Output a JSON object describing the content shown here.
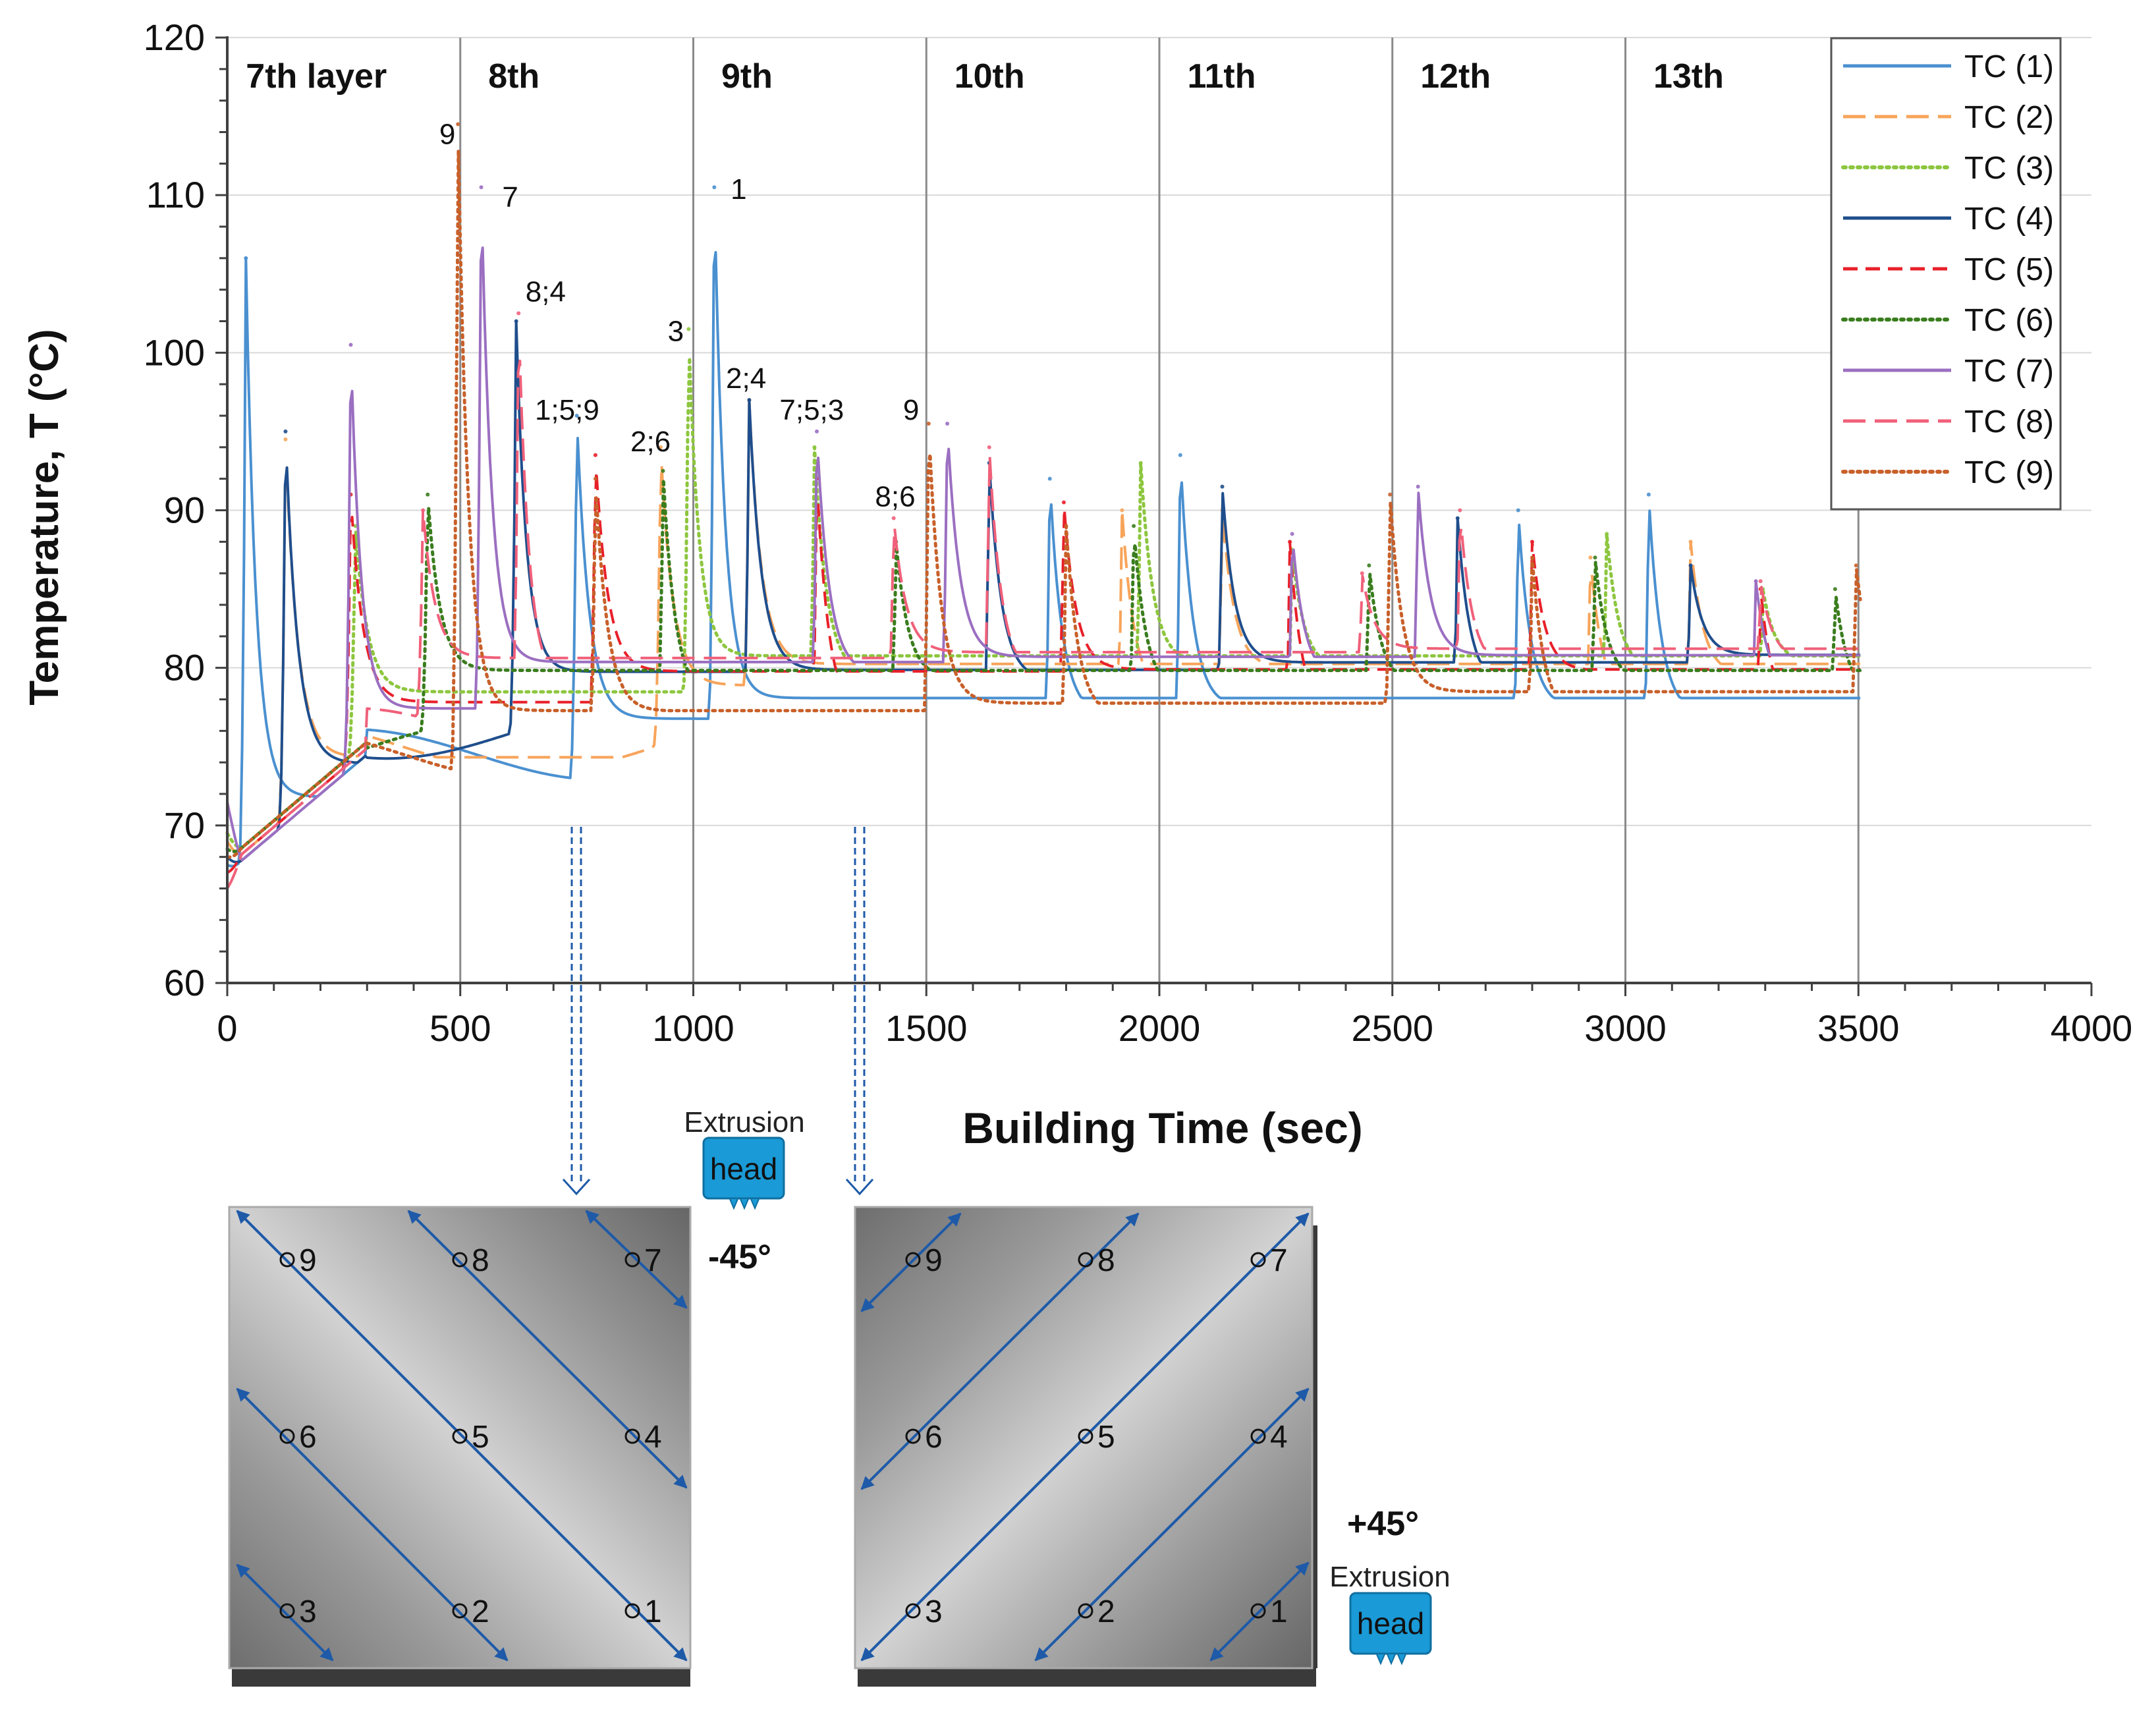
{
  "chart_data": {
    "type": "line",
    "xlabel": "Building Time (sec)",
    "ylabel": "Temperature, T (°C)",
    "xlim": [
      0,
      4000
    ],
    "ylim": [
      60,
      120
    ],
    "x_ticks": [
      "0",
      "500",
      "1000",
      "1500",
      "2000",
      "2500",
      "3000",
      "3500",
      "4000"
    ],
    "y_ticks": [
      "60",
      "70",
      "80",
      "90",
      "100",
      "110",
      "120"
    ],
    "grid": true,
    "legend_position": "top-right",
    "layer_boundaries": [
      500,
      1000,
      1500,
      2000,
      2500,
      3000,
      3500
    ],
    "layers": [
      {
        "label": "7th layer",
        "x": 40
      },
      {
        "label": "8th",
        "x": 560
      },
      {
        "label": "9th",
        "x": 1060
      },
      {
        "label": "10th",
        "x": 1560
      },
      {
        "label": "11th",
        "x": 2060
      },
      {
        "label": "12th",
        "x": 2560
      },
      {
        "label": "13th",
        "x": 3060
      }
    ],
    "series": [
      {
        "name": "TC (1)",
        "color": "#4a90d0",
        "dash": "solid",
        "start": 67.5,
        "peaks": [
          [
            40,
            106
          ],
          [
            750,
            96
          ],
          [
            1045,
            110.5
          ],
          [
            1765,
            92
          ],
          [
            2045,
            93.5
          ],
          [
            2770,
            90
          ],
          [
            3050,
            91
          ]
        ]
      },
      {
        "name": "TC (2)",
        "color": "#f7a45a",
        "dash": "long-dash",
        "start": 69,
        "peaks": [
          [
            125,
            94.5
          ],
          [
            930,
            94
          ],
          [
            1120,
            97
          ],
          [
            1920,
            90
          ],
          [
            2135,
            90
          ],
          [
            2925,
            87
          ],
          [
            3140,
            88
          ]
        ]
      },
      {
        "name": "TC (3)",
        "color": "#8dc63f",
        "dash": "dot",
        "start": 69.5,
        "peaks": [
          [
            275,
            89
          ],
          [
            990,
            101.5
          ],
          [
            1260,
            94
          ],
          [
            1960,
            93
          ],
          [
            2285,
            87.5
          ],
          [
            2960,
            88.5
          ],
          [
            3295,
            85
          ]
        ]
      },
      {
        "name": "TC (4)",
        "color": "#1f4e8c",
        "dash": "solid",
        "start": 68,
        "peaks": [
          [
            125,
            95
          ],
          [
            620,
            102
          ],
          [
            1120,
            97
          ],
          [
            1635,
            93
          ],
          [
            2135,
            91.5
          ],
          [
            2640,
            89.5
          ],
          [
            3140,
            86.5
          ]
        ]
      },
      {
        "name": "TC (5)",
        "color": "#e8202a",
        "dash": "dash",
        "start": 67,
        "peaks": [
          [
            265,
            91
          ],
          [
            790,
            93.5
          ],
          [
            1265,
            92
          ],
          [
            1795,
            90.5
          ],
          [
            2280,
            88
          ],
          [
            2800,
            88
          ],
          [
            3290,
            85
          ]
        ]
      },
      {
        "name": "TC (6)",
        "color": "#3a7d1e",
        "dash": "dot",
        "start": 68.5,
        "peaks": [
          [
            430,
            91
          ],
          [
            935,
            92.5
          ],
          [
            1435,
            88
          ],
          [
            1945,
            89
          ],
          [
            2450,
            86.5
          ],
          [
            2935,
            87
          ],
          [
            3450,
            85
          ]
        ]
      },
      {
        "name": "TC (7)",
        "color": "#9b6fc1",
        "dash": "solid",
        "start": 71.5,
        "peaks": [
          [
            265,
            100.5
          ],
          [
            545,
            110.5
          ],
          [
            1265,
            95
          ],
          [
            1545,
            95.5
          ],
          [
            2285,
            88.5
          ],
          [
            2555,
            91.5
          ],
          [
            3280,
            85.5
          ]
        ]
      },
      {
        "name": "TC (8)",
        "color": "#f0607a",
        "dash": "long-dash",
        "start": 66,
        "peaks": [
          [
            420,
            90
          ],
          [
            625,
            102.5
          ],
          [
            1430,
            89.5
          ],
          [
            1635,
            94
          ],
          [
            2435,
            86
          ],
          [
            2645,
            90
          ],
          [
            3290,
            85.5
          ]
        ]
      },
      {
        "name": "TC (9)",
        "color": "#c8602a",
        "dash": "dot",
        "start": 68,
        "peaks": [
          [
            495,
            114.5
          ],
          [
            790,
            92
          ],
          [
            1505,
            95.5
          ],
          [
            1800,
            89
          ],
          [
            2495,
            91
          ],
          [
            2800,
            87
          ],
          [
            3495,
            86.5
          ]
        ]
      }
    ],
    "peak_labels": [
      {
        "text": "9",
        "x": 455,
        "y": 114
      },
      {
        "text": "7",
        "x": 590,
        "y": 110
      },
      {
        "text": "8;4",
        "x": 640,
        "y": 104
      },
      {
        "text": "1;5;9",
        "x": 660,
        "y": 96.5
      },
      {
        "text": "2;6",
        "x": 865,
        "y": 94.5
      },
      {
        "text": "3",
        "x": 945,
        "y": 101.5
      },
      {
        "text": "1",
        "x": 1080,
        "y": 110.5
      },
      {
        "text": "2;4",
        "x": 1070,
        "y": 98.5
      },
      {
        "text": "7;5;3",
        "x": 1185,
        "y": 96.5
      },
      {
        "text": "9",
        "x": 1450,
        "y": 96.5
      },
      {
        "text": "8;6",
        "x": 1390,
        "y": 91
      }
    ]
  },
  "diagram": {
    "extrusion_label": "Extrusion",
    "head_label": "head",
    "left_panel": {
      "angle": "-45°",
      "points": [
        "9",
        "8",
        "7",
        "6",
        "5",
        "4",
        "3",
        "2",
        "1"
      ]
    },
    "right_panel": {
      "angle": "+45°",
      "points": [
        "9",
        "8",
        "7",
        "6",
        "5",
        "4",
        "3",
        "2",
        "1"
      ]
    }
  },
  "colors": {
    "axis": "#404040",
    "grid": "#d9d9d9",
    "divider": "#8a8a8a",
    "arrow": "#1e5aa8",
    "head": "#1a9ad6",
    "panel_base": "#3a3a3a"
  }
}
